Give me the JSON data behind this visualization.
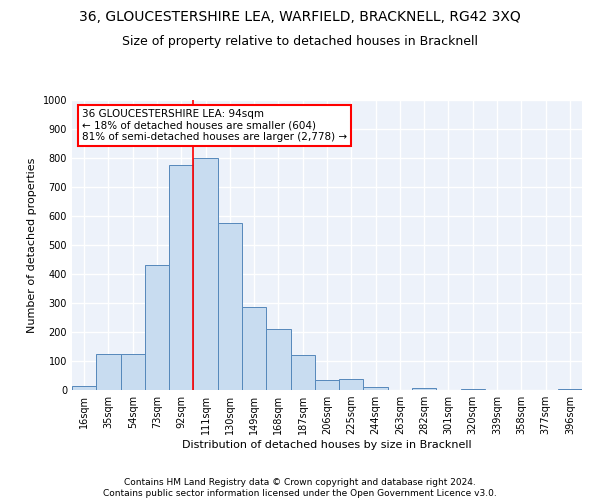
{
  "title_line1": "36, GLOUCESTERSHIRE LEA, WARFIELD, BRACKNELL, RG42 3XQ",
  "title_line2": "Size of property relative to detached houses in Bracknell",
  "xlabel": "Distribution of detached houses by size in Bracknell",
  "ylabel": "Number of detached properties",
  "categories": [
    "16sqm",
    "35sqm",
    "54sqm",
    "73sqm",
    "92sqm",
    "111sqm",
    "130sqm",
    "149sqm",
    "168sqm",
    "187sqm",
    "206sqm",
    "225sqm",
    "244sqm",
    "263sqm",
    "282sqm",
    "301sqm",
    "320sqm",
    "339sqm",
    "358sqm",
    "377sqm",
    "396sqm"
  ],
  "values": [
    15,
    125,
    125,
    430,
    775,
    800,
    575,
    285,
    210,
    120,
    35,
    38,
    10,
    0,
    8,
    0,
    5,
    0,
    0,
    0,
    5
  ],
  "bar_color": "#c8dcf0",
  "bar_edge_color": "#5588bb",
  "red_line_index": 4,
  "annotation_text": "36 GLOUCESTERSHIRE LEA: 94sqm\n← 18% of detached houses are smaller (604)\n81% of semi-detached houses are larger (2,778) →",
  "annotation_box_color": "white",
  "annotation_border_color": "red",
  "red_line_color": "red",
  "ylim": [
    0,
    1000
  ],
  "yticks": [
    0,
    100,
    200,
    300,
    400,
    500,
    600,
    700,
    800,
    900,
    1000
  ],
  "footer_line1": "Contains HM Land Registry data © Crown copyright and database right 2024.",
  "footer_line2": "Contains public sector information licensed under the Open Government Licence v3.0.",
  "background_color": "#edf2fa",
  "grid_color": "white",
  "title_fontsize": 10,
  "subtitle_fontsize": 9,
  "axis_label_fontsize": 8,
  "tick_fontsize": 7,
  "annotation_fontsize": 7.5,
  "footer_fontsize": 6.5
}
